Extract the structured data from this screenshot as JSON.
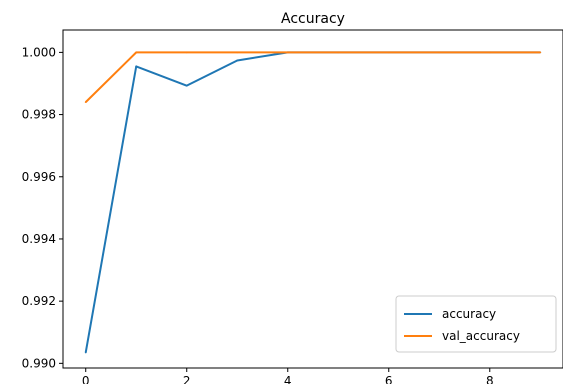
{
  "chart_data": {
    "type": "line",
    "title": "Accuracy",
    "xlabel": "",
    "ylabel": "",
    "x": [
      0,
      1,
      2,
      3,
      4,
      5,
      6,
      7,
      8,
      9
    ],
    "xlim": [
      -0.45,
      9.45
    ],
    "ylim": [
      0.98985,
      1.00072
    ],
    "xticks": [
      0,
      2,
      4,
      6,
      8
    ],
    "yticks": [
      0.99,
      0.992,
      0.994,
      0.996,
      0.998,
      1.0
    ],
    "ytick_labels": [
      "0.990",
      "0.992",
      "0.994",
      "0.996",
      "0.998",
      "1.000"
    ],
    "grid": false,
    "legend_position": "lower-right",
    "series": [
      {
        "name": "accuracy",
        "color": "#1f77b4",
        "values": [
          0.99035,
          0.99955,
          0.99893,
          0.99974,
          1.0,
          1.0,
          1.0,
          1.0,
          1.0,
          1.0
        ]
      },
      {
        "name": "val_accuracy",
        "color": "#ff7f0e",
        "values": [
          0.9984,
          1.0,
          1.0,
          1.0,
          1.0,
          1.0,
          1.0,
          1.0,
          1.0,
          1.0
        ]
      }
    ]
  }
}
